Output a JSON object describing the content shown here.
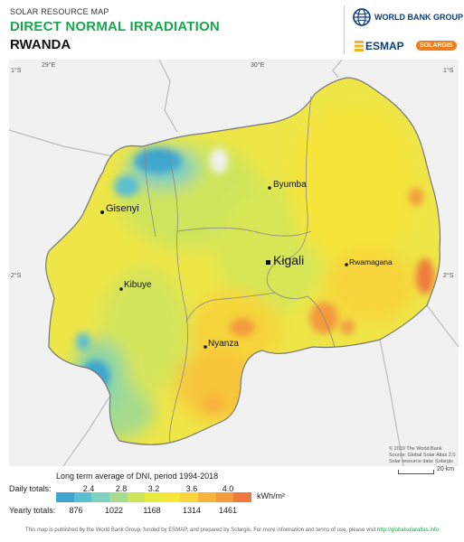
{
  "header": {
    "kicker": "SOLAR RESOURCE MAP",
    "title": "DIRECT NORMAL IRRADIATION",
    "country": "RWANDA",
    "world_bank": "WORLD BANK GROUP",
    "esmap": "ESMAP",
    "solargis": "SOLARGIS"
  },
  "graticule": {
    "lon_left": "29°E",
    "lon_right": "30°E",
    "lat_top_left": "1°S",
    "lat_top_right": "1°S",
    "lat_mid_left": "2°S",
    "lat_mid_right": "2°S"
  },
  "cities": {
    "gisenyi": "Gisenyi",
    "byumba": "Byumba",
    "kigali": "Kigali",
    "rwamagana": "Rwamagana",
    "kibuye": "Kibuye",
    "nyanza": "Nyanza"
  },
  "credit": {
    "line1": "© 2019 The World Bank",
    "line2": "Source: Global Solar Atlas 2.0",
    "line3": "Solar resource data: Solargis"
  },
  "scale": {
    "label": "20 km"
  },
  "legend": {
    "title": "Long term average of DNI, period 1994-2018",
    "daily_label": "Daily totals:",
    "daily_values": [
      "2.4",
      "2.8",
      "3.2",
      "3.6",
      "4.0"
    ],
    "yearly_label": "Yearly totals:",
    "yearly_values": [
      "876",
      "1022",
      "1168",
      "1314",
      "1461"
    ],
    "unit": "kWh/m²",
    "colors": [
      "#3fa6cf",
      "#5bbfd2",
      "#7ed0c0",
      "#a8dc8c",
      "#cde55a",
      "#e8ec3c",
      "#f7e63a",
      "#fbd33a",
      "#f8b33a",
      "#f39a3c",
      "#ef7a3c"
    ]
  },
  "footer": {
    "text": "This map is published by the World Bank Group, funded by ESMAP, and prepared by Solargis. For more information and terms of use, please visit",
    "link": "http://globalsolaratlas.info"
  }
}
